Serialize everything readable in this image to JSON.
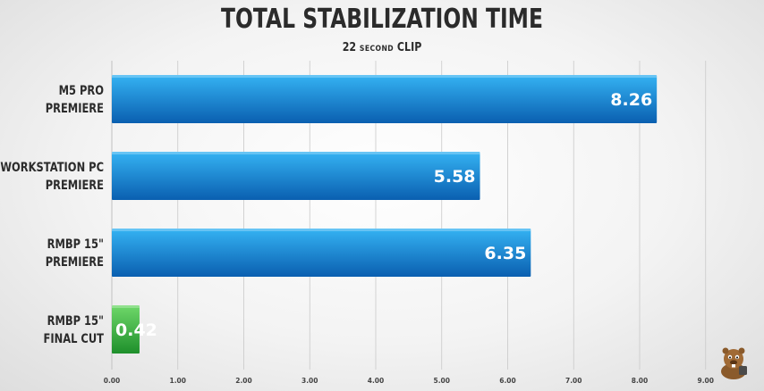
{
  "chart_data": {
    "type": "bar",
    "orientation": "horizontal",
    "title": "TOTAL STABILIZATION TIME",
    "subtitle_parts": [
      {
        "text": "22 ",
        "style": "normal"
      },
      {
        "text": "SECOND",
        "style": "small"
      },
      {
        "text": " CLIP",
        "style": "normal"
      }
    ],
    "categories": [
      [
        "M5 PRO",
        "PREMIERE"
      ],
      [
        "WORKSTATION PC",
        "PREMIERE"
      ],
      [
        "RMBP 15\"",
        "PREMIERE"
      ],
      [
        "RMBP 15\"",
        "FINAL CUT"
      ]
    ],
    "values": [
      8.26,
      5.58,
      6.35,
      0.42
    ],
    "value_labels": [
      "8.26",
      "5.58",
      "6.35",
      "0.42"
    ],
    "bar_colors": [
      "blue",
      "blue",
      "blue",
      "green"
    ],
    "colors": {
      "blue_top": "#35b3f3",
      "blue_bottom": "#0a5fb0",
      "green_top": "#6fd86a",
      "green_bottom": "#1e8f2b",
      "grid": "#c9c9c9"
    },
    "xlim": [
      0,
      9.6
    ],
    "x_ticks": [
      0,
      1,
      2,
      3,
      4,
      5,
      6,
      7,
      8,
      9
    ],
    "x_tick_labels": [
      "0.00",
      "1.00",
      "2.00",
      "3.00",
      "4.00",
      "5.00",
      "6.00",
      "7.00",
      "8.00",
      "9.00"
    ],
    "grid": "vertical",
    "legend": "none",
    "xlabel": "",
    "ylabel": ""
  },
  "mascot": {
    "icon": "beaver-mascot-icon"
  }
}
